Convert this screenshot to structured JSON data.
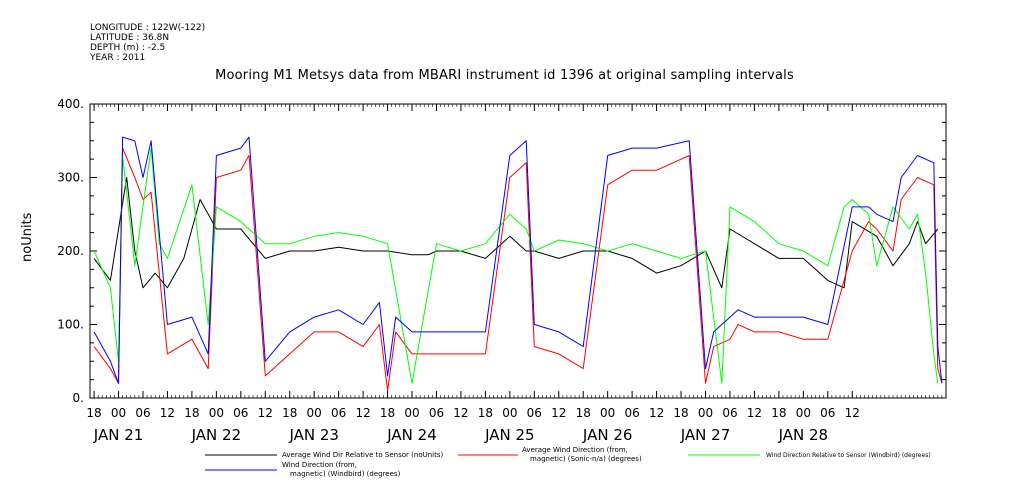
{
  "meta": {
    "longitude": "LONGITUDE : 122W(-122)",
    "latitude": "LATITUDE : 36.8N",
    "depth": "DEPTH (m) : -2.5",
    "year": "YEAR : 2011"
  },
  "colors": {
    "black": "#000000",
    "red": "#ff0000",
    "green": "#00ff00",
    "blue": "#0000ff"
  },
  "chart_data": {
    "type": "line",
    "title": "Mooring M1 Metsys data from MBARI instrument id 1396 at original sampling intervals",
    "ylabel": "noUnits",
    "ylim": [
      0,
      400
    ],
    "y_ticks": [
      "0.",
      "100.",
      "200.",
      "300.",
      "400."
    ],
    "x_hour_ticks": [
      "18",
      "00",
      "06",
      "12",
      "18",
      "00",
      "06",
      "12",
      "18",
      "00",
      "06",
      "12",
      "18",
      "00",
      "06",
      "12",
      "18",
      "00",
      "06",
      "12",
      "18",
      "00",
      "06",
      "12",
      "18",
      "00",
      "06",
      "12",
      "18",
      "00",
      "06",
      "12"
    ],
    "x_day_labels": [
      "JAN 21",
      "JAN 22",
      "JAN 23",
      "JAN 24",
      "JAN 25",
      "JAN 26",
      "JAN 27",
      "JAN 28"
    ],
    "x_range_hours": [
      -7,
      203
    ],
    "legend_placement": "bottom",
    "series": [
      {
        "name": "Average Wind Dir Relative to Sensor (noUnits)",
        "color": "#000000",
        "x": [
          -6,
          -2,
          2,
          4,
          6,
          9,
          12,
          16,
          20,
          24,
          30,
          36,
          42,
          48,
          54,
          60,
          66,
          72,
          76,
          78,
          84,
          90,
          96,
          100,
          102,
          108,
          114,
          120,
          126,
          132,
          138,
          144,
          148,
          150,
          156,
          162,
          168,
          174,
          178,
          180,
          186,
          190,
          194,
          196,
          198,
          201
        ],
        "values": [
          190,
          160,
          300,
          200,
          150,
          170,
          150,
          190,
          270,
          230,
          230,
          190,
          200,
          200,
          205,
          200,
          200,
          195,
          195,
          200,
          200,
          190,
          220,
          200,
          200,
          190,
          200,
          200,
          190,
          170,
          180,
          200,
          150,
          230,
          210,
          190,
          190,
          160,
          150,
          240,
          220,
          180,
          210,
          240,
          210,
          230
        ]
      },
      {
        "name": "Average Wind Direction (from, magnetic) (Sonic-n/a) (degrees)",
        "color": "#ff0000",
        "x": [
          -6,
          -2,
          0,
          1,
          4,
          6,
          8,
          12,
          18,
          22,
          24,
          30,
          32,
          36,
          42,
          48,
          54,
          60,
          64,
          66,
          68,
          72,
          78,
          84,
          90,
          96,
          98,
          100,
          102,
          108,
          114,
          120,
          126,
          132,
          140,
          144,
          146,
          150,
          152,
          156,
          162,
          168,
          174,
          180,
          184,
          186,
          190,
          192,
          196,
          200,
          201,
          202
        ],
        "values": [
          70,
          40,
          20,
          340,
          300,
          270,
          280,
          60,
          80,
          40,
          300,
          310,
          330,
          30,
          60,
          90,
          90,
          70,
          100,
          10,
          90,
          60,
          60,
          60,
          60,
          300,
          310,
          320,
          70,
          60,
          40,
          290,
          310,
          310,
          330,
          20,
          70,
          80,
          100,
          90,
          90,
          80,
          80,
          200,
          240,
          230,
          200,
          270,
          300,
          290,
          40,
          20
        ]
      },
      {
        "name": "Wind Direction Relative to Sensor (Windbird) (degrees)",
        "color": "#00ff00",
        "x": [
          -6,
          -2,
          0,
          1,
          4,
          8,
          10,
          12,
          18,
          22,
          24,
          30,
          36,
          42,
          48,
          54,
          60,
          66,
          72,
          78,
          84,
          90,
          96,
          100,
          102,
          108,
          114,
          120,
          126,
          132,
          138,
          144,
          148,
          150,
          156,
          162,
          168,
          174,
          178,
          180,
          184,
          186,
          190,
          194,
          196,
          198,
          200,
          201
        ],
        "values": [
          200,
          150,
          50,
          330,
          180,
          340,
          210,
          190,
          290,
          100,
          260,
          240,
          210,
          210,
          220,
          225,
          220,
          210,
          20,
          210,
          200,
          210,
          250,
          230,
          200,
          215,
          210,
          200,
          210,
          200,
          190,
          200,
          20,
          260,
          240,
          210,
          200,
          180,
          260,
          270,
          250,
          180,
          260,
          230,
          250,
          170,
          60,
          20
        ]
      },
      {
        "name": "Wind Direction (from, magnetic) (Windbird) (degrees)",
        "color": "#0000ff",
        "x": [
          -6,
          -2,
          0,
          1,
          4,
          6,
          8,
          12,
          18,
          22,
          24,
          30,
          32,
          36,
          42,
          48,
          54,
          60,
          64,
          66,
          68,
          72,
          78,
          84,
          90,
          96,
          98,
          100,
          102,
          108,
          114,
          120,
          126,
          132,
          140,
          144,
          146,
          150,
          152,
          156,
          162,
          168,
          174,
          180,
          184,
          186,
          190,
          192,
          196,
          200,
          201,
          202
        ],
        "values": [
          90,
          50,
          20,
          355,
          350,
          300,
          350,
          100,
          110,
          60,
          330,
          340,
          355,
          50,
          90,
          110,
          120,
          100,
          130,
          30,
          110,
          90,
          90,
          90,
          90,
          330,
          340,
          350,
          100,
          90,
          70,
          330,
          340,
          340,
          350,
          40,
          90,
          110,
          120,
          110,
          110,
          110,
          100,
          260,
          260,
          250,
          240,
          300,
          330,
          320,
          70,
          20
        ]
      }
    ]
  }
}
